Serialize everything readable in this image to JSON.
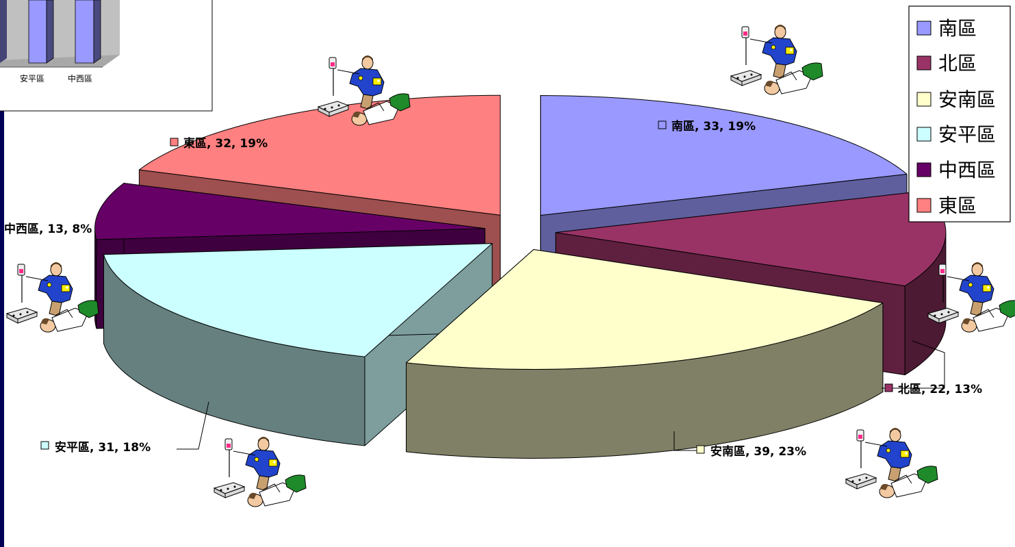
{
  "chart_data": {
    "type": "pie",
    "style": "exploded-3d",
    "slices": [
      {
        "name": "南區",
        "value": 33,
        "percent": "19%",
        "label": "南區, 33, 19%",
        "color": "#9999FF"
      },
      {
        "name": "北區",
        "value": 22,
        "percent": "13%",
        "label": "北區, 22, 13%",
        "color": "#993366"
      },
      {
        "name": "安南區",
        "value": 39,
        "percent": "23%",
        "label": "安南區, 39, 23%",
        "color": "#FFFFCC"
      },
      {
        "name": "安平區",
        "value": 31,
        "percent": "18%",
        "label": "安平區, 31, 18%",
        "color": "#CCFFFF"
      },
      {
        "name": "中西區",
        "value": 13,
        "percent": "8%",
        "label": "中西區, 13, 8%",
        "color": "#660066"
      },
      {
        "name": "東區",
        "value": 32,
        "percent": "19%",
        "label": "東區, 32, 19%",
        "color": "#FF8080"
      }
    ],
    "legend": {
      "position": "top-right",
      "entries": [
        "南區",
        "北區",
        "安南區",
        "安平區",
        "中西區",
        "東區"
      ]
    }
  },
  "inset": {
    "type": "bar-3d",
    "tick_labels": [
      "安平區",
      "中西區"
    ]
  }
}
